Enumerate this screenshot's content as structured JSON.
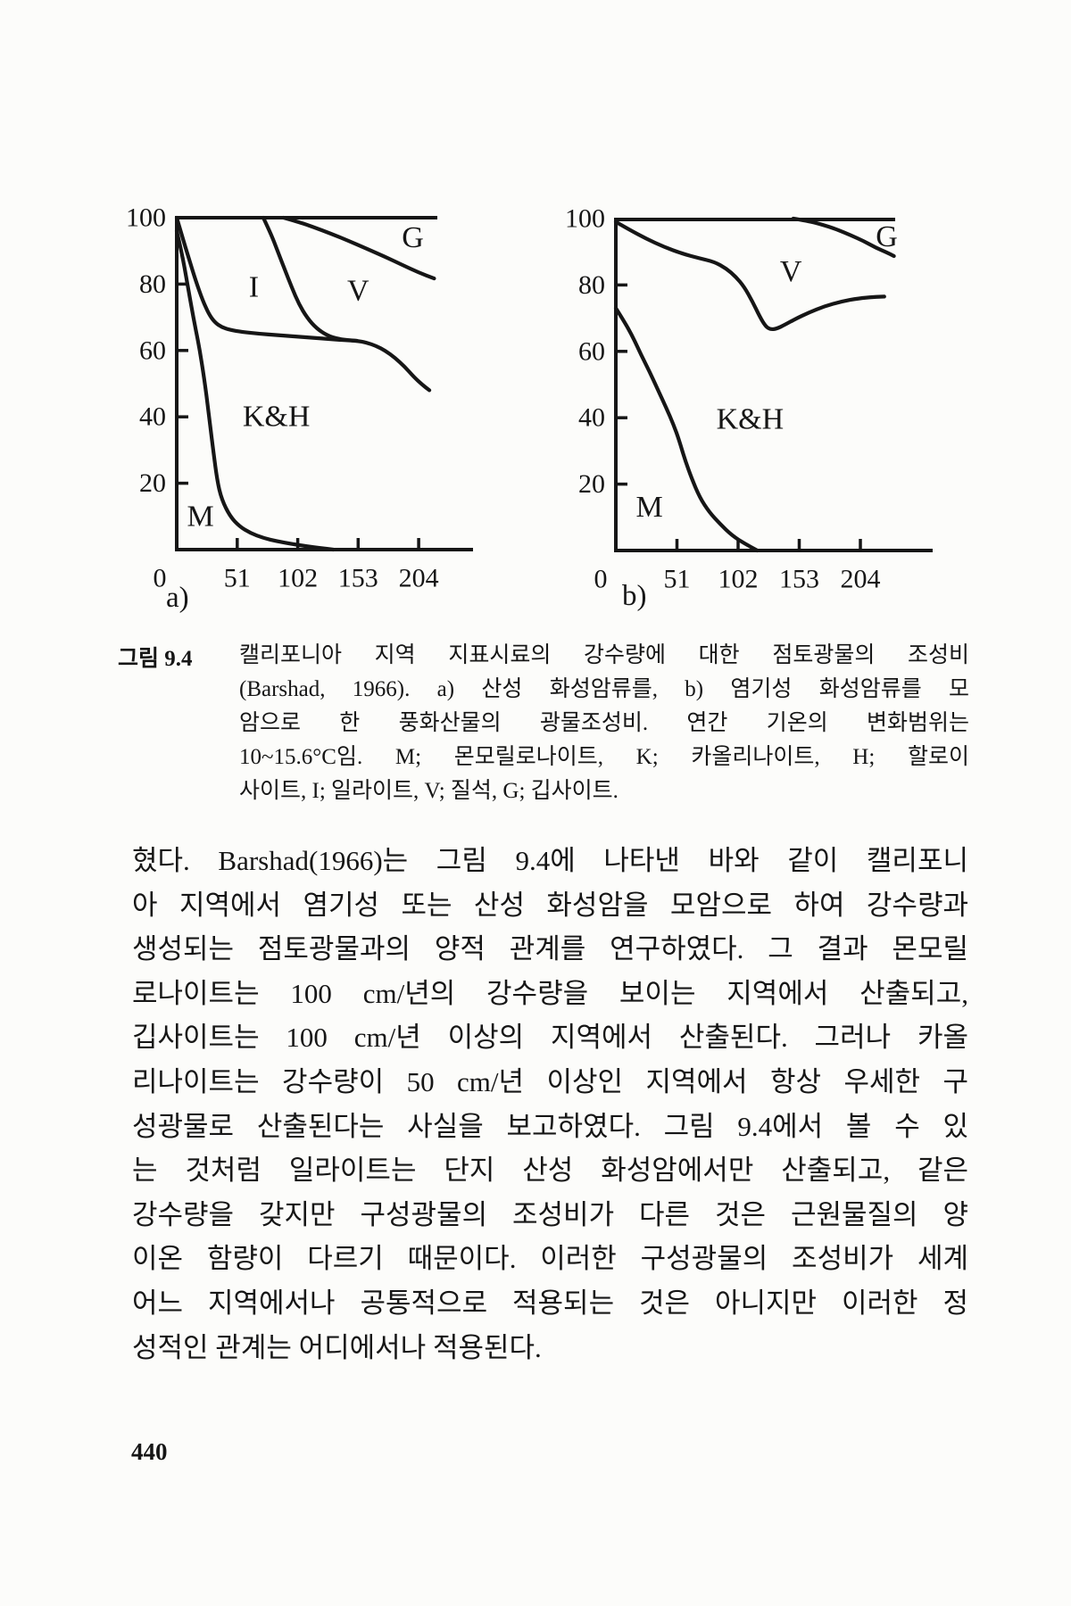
{
  "page": {
    "number": "440",
    "background": "#fcfcfa",
    "ink": "#161616"
  },
  "figure": {
    "sublabels": {
      "a": "a)",
      "b": "b)"
    },
    "caption": {
      "label": "그림 9.4",
      "lines": [
        "캘리포니아 지역 지표시료의 강수량에 대한 점토광물의 조성비",
        "(Barshad, 1966). a) 산성 화성암류를, b) 염기성 화성암류를 모",
        "암으로 한 풍화산물의 광물조성비. 연간 기온의 변화범위는",
        "10~15.6°C임. M; 몬모릴로나이트, K; 카올리나이트, H; 할로이",
        "사이트, I; 일라이트, V; 질석, G; 깁사이트."
      ]
    }
  },
  "chart_data": [
    {
      "type": "line",
      "panel": "a",
      "panel_label": "a)",
      "title": "산성 화성암류 모암 풍화산물의 광물조성비",
      "xlabel": "",
      "ylabel": "",
      "xlim": [
        0,
        250
      ],
      "ylim": [
        0,
        100
      ],
      "grid": false,
      "x_origin_label": "0",
      "x_ticks": [
        51,
        102,
        153,
        204
      ],
      "y_ticks": [
        20,
        40,
        60,
        80,
        100
      ],
      "series": [
        {
          "key": "m",
          "name": "M boundary (montmorillonite)",
          "points": [
            [
              0,
              96
            ],
            [
              4,
              90
            ],
            [
              9,
              80
            ],
            [
              14,
              70
            ],
            [
              19,
              61
            ],
            [
              23,
              52
            ],
            [
              27,
              41
            ],
            [
              30,
              32
            ],
            [
              34,
              21
            ],
            [
              38,
              15
            ],
            [
              45,
              10
            ],
            [
              53,
              7
            ],
            [
              62,
              5
            ],
            [
              73,
              3.5
            ],
            [
              85,
              2.5
            ],
            [
              97,
              1.7
            ],
            [
              110,
              1
            ],
            [
              120,
              0.5
            ],
            [
              132,
              0
            ]
          ]
        },
        {
          "key": "kh",
          "name": "K&H upper boundary",
          "points": [
            [
              0,
              100
            ],
            [
              5,
              94
            ],
            [
              10,
              88
            ],
            [
              16,
              81
            ],
            [
              22,
              75
            ],
            [
              27,
              71
            ],
            [
              32,
              68.5
            ],
            [
              38,
              67
            ],
            [
              45,
              66.2
            ],
            [
              55,
              65.6
            ],
            [
              70,
              65
            ],
            [
              85,
              64.6
            ],
            [
              100,
              64.2
            ],
            [
              115,
              63.8
            ],
            [
              130,
              63.4
            ],
            [
              142,
              63.1
            ],
            [
              152,
              62.9
            ],
            [
              160,
              62.4
            ],
            [
              168,
              61.4
            ],
            [
              176,
              59.9
            ],
            [
              184,
              57.8
            ],
            [
              192,
              55.2
            ],
            [
              200,
              52
            ],
            [
              207,
              49.7
            ],
            [
              213,
              48
            ]
          ]
        },
        {
          "key": "iv",
          "name": "I / V boundary",
          "points": [
            [
              73,
              100
            ],
            [
              79,
              95.5
            ],
            [
              85,
              90
            ],
            [
              91,
              84.5
            ],
            [
              97,
              79
            ],
            [
              103,
              74
            ],
            [
              110,
              69.8
            ],
            [
              118,
              66.6
            ],
            [
              127,
              64.5
            ],
            [
              136,
              63.5
            ],
            [
              145,
              63.1
            ],
            [
              152,
              62.9
            ]
          ]
        },
        {
          "key": "vg",
          "name": "V / G boundary",
          "points": [
            [
              90,
              100
            ],
            [
              102,
              98.8
            ],
            [
              115,
              97.2
            ],
            [
              130,
              95.2
            ],
            [
              145,
              93
            ],
            [
              160,
              90.7
            ],
            [
              175,
              88.3
            ],
            [
              190,
              85.8
            ],
            [
              204,
              83.5
            ],
            [
              217,
              81.7
            ]
          ]
        }
      ],
      "region_labels": [
        {
          "text": "M",
          "x": 20,
          "y": 10
        },
        {
          "text": "K&H",
          "x": 84,
          "y": 40
        },
        {
          "text": "I",
          "x": 65,
          "y": 79
        },
        {
          "text": "V",
          "x": 153,
          "y": 78
        },
        {
          "text": "G",
          "x": 199,
          "y": 94
        }
      ]
    },
    {
      "type": "line",
      "panel": "b",
      "panel_label": "b)",
      "title": "염기성 화성암류 모암 풍화산물의 광물조성비",
      "xlabel": "",
      "ylabel": "",
      "xlim": [
        0,
        264
      ],
      "ylim": [
        0,
        100
      ],
      "grid": false,
      "x_origin_label": "0",
      "x_ticks": [
        51,
        102,
        153,
        204
      ],
      "y_ticks": [
        20,
        40,
        60,
        80,
        100
      ],
      "series": [
        {
          "key": "m",
          "name": "M boundary (montmorillonite)",
          "points": [
            [
              0,
              73
            ],
            [
              7,
              69
            ],
            [
              14,
              64.5
            ],
            [
              21,
              59
            ],
            [
              28,
              54
            ],
            [
              35,
              48.5
            ],
            [
              42,
              43
            ],
            [
              48,
              38
            ],
            [
              53,
              33
            ],
            [
              58,
              27
            ],
            [
              63,
              22
            ],
            [
              70,
              16
            ],
            [
              78,
              11.5
            ],
            [
              87,
              8
            ],
            [
              97,
              4.5
            ],
            [
              108,
              2
            ],
            [
              118,
              0
            ]
          ]
        },
        {
          "key": "v",
          "name": "K&H / V boundary",
          "points": [
            [
              0,
              99
            ],
            [
              12,
              96.5
            ],
            [
              25,
              94
            ],
            [
              40,
              91.5
            ],
            [
              55,
              89.5
            ],
            [
              70,
              88
            ],
            [
              82,
              87
            ],
            [
              92,
              85
            ],
            [
              100,
              82.5
            ],
            [
              107,
              79.5
            ],
            [
              114,
              75
            ],
            [
              120,
              70.5
            ],
            [
              125,
              67.5
            ],
            [
              129,
              66.6
            ],
            [
              134,
              66.8
            ],
            [
              141,
              68
            ],
            [
              150,
              69.8
            ],
            [
              161,
              71.7
            ],
            [
              174,
              73.6
            ],
            [
              188,
              75
            ],
            [
              203,
              76
            ],
            [
              215,
              76.4
            ],
            [
              224,
              76.5
            ]
          ]
        },
        {
          "key": "g",
          "name": "V / G boundary",
          "points": [
            [
              148,
              100
            ],
            [
              160,
              99.3
            ],
            [
              172,
              98.2
            ],
            [
              184,
              96.8
            ],
            [
              196,
              95
            ],
            [
              207,
              93.2
            ],
            [
              217,
              91.2
            ],
            [
              226,
              89.8
            ],
            [
              232,
              88.7
            ]
          ]
        }
      ],
      "region_labels": [
        {
          "text": "M",
          "x": 28,
          "y": 13
        },
        {
          "text": "K&H",
          "x": 112,
          "y": 39.5
        },
        {
          "text": "V",
          "x": 146,
          "y": 84
        },
        {
          "text": "G",
          "x": 226,
          "y": 94.5
        }
      ]
    }
  ],
  "body": {
    "lines": [
      "혔다. Barshad(1966)는 그림 9.4에 나타낸 바와 같이 캘리포니",
      "아 지역에서 염기성 또는 산성 화성암을 모암으로 하여 강수량과",
      "생성되는 점토광물과의 양적 관계를 연구하였다. 그 결과 몬모릴",
      "로나이트는 100 cm/년의 강수량을 보이는 지역에서 산출되고,",
      "깁사이트는 100 cm/년 이상의 지역에서 산출된다. 그러나 카올",
      "리나이트는 강수량이 50 cm/년 이상인 지역에서 항상 우세한 구",
      "성광물로 산출된다는 사실을 보고하였다. 그림 9.4에서 볼 수 있",
      "는 것처럼 일라이트는 단지 산성 화성암에서만 산출되고, 같은",
      "강수량을 갖지만 구성광물의 조성비가 다른 것은 근원물질의 양",
      "이온 함량이 다르기 때문이다. 이러한 구성광물의 조성비가 세계",
      "어느 지역에서나 공통적으로 적용되는 것은 아니지만 이러한 정",
      "성적인 관계는 어디에서나 적용된다."
    ]
  }
}
